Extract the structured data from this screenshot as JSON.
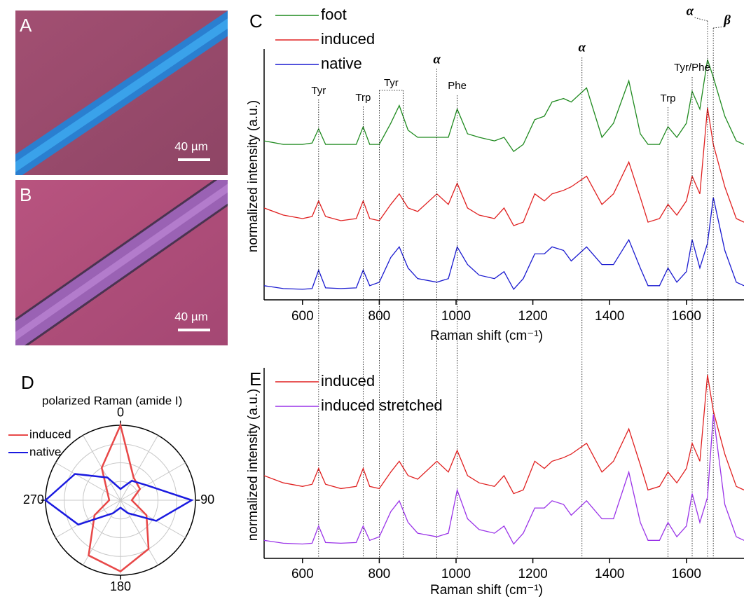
{
  "images": [
    {
      "label": "A",
      "scale_bar": "40 µm"
    },
    {
      "label": "B",
      "scale_bar": "40 µm"
    }
  ],
  "chart_data": [
    {
      "type": "polar",
      "panel_label": "D",
      "title": "polarized Raman (amide I)",
      "theta": [
        0,
        30,
        60,
        90,
        120,
        150,
        180,
        210,
        240,
        270,
        300,
        330
      ],
      "theta_ticks": [
        0,
        90,
        180,
        270
      ],
      "rlim": [
        0,
        1
      ],
      "grid_rings": [
        0.25,
        0.5,
        0.75,
        1
      ],
      "series": [
        {
          "name": "induced",
          "color": "#e84848",
          "values": [
            1.0,
            0.35,
            0.3,
            0.15,
            0.4,
            0.75,
            0.95,
            0.85,
            0.4,
            0.15,
            0.2,
            0.5
          ]
        },
        {
          "name": "native",
          "color": "#1a1ae0",
          "values": [
            0.15,
            0.3,
            0.4,
            0.95,
            0.55,
            0.2,
            0.1,
            0.2,
            0.65,
            1.0,
            0.7,
            0.35
          ]
        }
      ]
    },
    {
      "type": "line",
      "panel_label": "C",
      "x_label": "Raman shift (cm⁻¹)",
      "y_label": "normalized intensity (a.u.)",
      "xlim": [
        500,
        1750
      ],
      "xticks": [
        600,
        800,
        1000,
        1200,
        1400,
        1600
      ],
      "ylim": [
        0,
        3.5
      ],
      "x": [
        500,
        550,
        600,
        625,
        642,
        660,
        700,
        740,
        758,
        775,
        800,
        830,
        852,
        875,
        900,
        950,
        980,
        1003,
        1030,
        1060,
        1100,
        1125,
        1150,
        1175,
        1205,
        1230,
        1250,
        1280,
        1300,
        1340,
        1380,
        1410,
        1450,
        1480,
        1500,
        1530,
        1552,
        1575,
        1600,
        1615,
        1635,
        1655,
        1670,
        1700,
        1730,
        1750
      ],
      "series": [
        {
          "name": "foot",
          "color": "#1f8a1f",
          "values": [
            2.25,
            2.2,
            2.2,
            2.22,
            2.42,
            2.2,
            2.2,
            2.2,
            2.45,
            2.2,
            2.2,
            2.5,
            2.75,
            2.4,
            2.3,
            2.3,
            2.3,
            2.7,
            2.35,
            2.3,
            2.25,
            2.3,
            2.1,
            2.2,
            2.55,
            2.6,
            2.8,
            2.85,
            2.8,
            3.0,
            2.3,
            2.5,
            3.1,
            2.35,
            2.2,
            2.2,
            2.45,
            2.3,
            2.5,
            2.95,
            2.7,
            3.4,
            3.15,
            2.6,
            2.25,
            2.2
          ]
        },
        {
          "name": "induced",
          "color": "#e02020",
          "values": [
            1.3,
            1.2,
            1.15,
            1.18,
            1.4,
            1.18,
            1.12,
            1.15,
            1.4,
            1.15,
            1.12,
            1.35,
            1.5,
            1.3,
            1.25,
            1.5,
            1.35,
            1.65,
            1.3,
            1.2,
            1.15,
            1.3,
            1.05,
            1.1,
            1.5,
            1.4,
            1.5,
            1.55,
            1.6,
            1.75,
            1.35,
            1.5,
            1.95,
            1.45,
            1.1,
            1.15,
            1.35,
            1.2,
            1.4,
            1.75,
            1.5,
            2.72,
            2.2,
            1.6,
            1.15,
            1.1
          ]
        },
        {
          "name": "native",
          "color": "#1a1ad0",
          "values": [
            0.2,
            0.16,
            0.15,
            0.16,
            0.42,
            0.17,
            0.16,
            0.17,
            0.42,
            0.2,
            0.25,
            0.6,
            0.75,
            0.45,
            0.3,
            0.25,
            0.3,
            0.75,
            0.5,
            0.35,
            0.3,
            0.4,
            0.15,
            0.3,
            0.65,
            0.65,
            0.75,
            0.7,
            0.55,
            0.75,
            0.5,
            0.5,
            0.85,
            0.45,
            0.2,
            0.2,
            0.45,
            0.25,
            0.4,
            0.85,
            0.45,
            0.8,
            1.45,
            0.7,
            0.25,
            0.2
          ]
        }
      ],
      "annotations": [
        {
          "text": "Tyr",
          "x": 642
        },
        {
          "text": "Trp",
          "x": 758
        },
        {
          "text": "Tyr",
          "x": [
            800,
            862
          ]
        },
        {
          "text": "α",
          "x": 950
        },
        {
          "text": "Phe",
          "x": 1003
        },
        {
          "text": "α",
          "x": 1328
        },
        {
          "text": "Trp",
          "x": 1552
        },
        {
          "text": "Tyr/Phe",
          "x": 1615
        },
        {
          "text": "α",
          "x": 1655
        },
        {
          "text": "β",
          "x": 1670
        }
      ]
    },
    {
      "type": "line",
      "panel_label": "E",
      "x_label": "Raman shift (cm⁻¹)",
      "y_label": "normalized intensity (a.u.)",
      "xlim": [
        500,
        1750
      ],
      "xticks": [
        600,
        800,
        1000,
        1200,
        1400,
        1600
      ],
      "ylim": [
        0,
        2.6
      ],
      "x": [
        500,
        550,
        600,
        625,
        642,
        660,
        700,
        740,
        758,
        775,
        800,
        830,
        852,
        875,
        900,
        950,
        980,
        1003,
        1030,
        1060,
        1100,
        1125,
        1150,
        1175,
        1205,
        1230,
        1250,
        1280,
        1300,
        1340,
        1380,
        1410,
        1450,
        1480,
        1500,
        1530,
        1552,
        1575,
        1600,
        1615,
        1635,
        1655,
        1670,
        1700,
        1730,
        1750
      ],
      "series": [
        {
          "name": "induced",
          "color": "#e02020",
          "values": [
            1.15,
            1.05,
            1.0,
            1.03,
            1.25,
            1.03,
            0.97,
            1.0,
            1.25,
            1.0,
            0.97,
            1.2,
            1.35,
            1.15,
            1.1,
            1.35,
            1.2,
            1.5,
            1.15,
            1.05,
            1.0,
            1.15,
            0.9,
            0.95,
            1.35,
            1.25,
            1.35,
            1.4,
            1.45,
            1.6,
            1.2,
            1.35,
            1.8,
            1.3,
            0.95,
            1.0,
            1.2,
            1.05,
            1.25,
            1.6,
            1.35,
            2.55,
            2.05,
            1.45,
            1.0,
            0.95
          ]
        },
        {
          "name": "induced stretched",
          "color": "#9a33e8",
          "values": [
            0.25,
            0.21,
            0.2,
            0.21,
            0.45,
            0.22,
            0.21,
            0.22,
            0.45,
            0.25,
            0.3,
            0.65,
            0.8,
            0.5,
            0.35,
            0.3,
            0.35,
            0.95,
            0.55,
            0.4,
            0.35,
            0.45,
            0.2,
            0.35,
            0.7,
            0.7,
            0.8,
            0.75,
            0.6,
            0.8,
            0.55,
            0.55,
            1.2,
            0.5,
            0.25,
            0.25,
            0.5,
            0.3,
            0.45,
            0.9,
            0.5,
            0.85,
            2.0,
            0.75,
            0.3,
            0.25
          ]
        }
      ]
    }
  ]
}
